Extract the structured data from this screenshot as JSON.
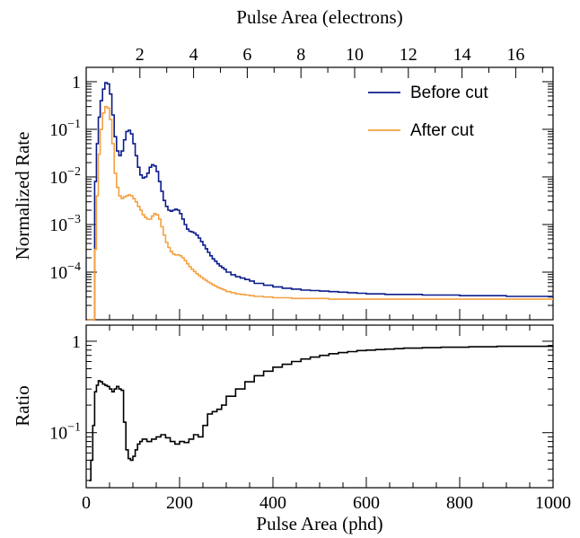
{
  "chart_data": [
    {
      "type": "line",
      "panel": "main",
      "title": "",
      "xlabel": "Pulse Area (phd)",
      "ylabel": "Normalized Rate",
      "secondary_xlabel": "Pulse Area (electrons)",
      "secondary_x_ticks": [
        "2",
        "4",
        "6",
        "8",
        "10",
        "12",
        "14",
        "16"
      ],
      "secondary_x_tick_values": [
        2,
        4,
        6,
        8,
        10,
        12,
        14,
        16
      ],
      "electron_phd": 57.5,
      "xlim": [
        0,
        1000
      ],
      "ylim": [
        1e-05,
        2
      ],
      "yscale": "log",
      "y_ticks": [
        "1",
        "10^-1",
        "10^-2",
        "10^-3",
        "10^-4"
      ],
      "y_tick_values": [
        1,
        0.1,
        0.01,
        0.001,
        0.0001
      ],
      "legend_position": "top-right",
      "series": [
        {
          "name": "Before cut",
          "color": "#0b1c8c",
          "x": [
            10,
            18,
            22,
            26,
            30,
            35,
            40,
            45,
            50,
            55,
            60,
            65,
            70,
            75,
            80,
            85,
            90,
            95,
            100,
            105,
            110,
            115,
            120,
            125,
            130,
            135,
            140,
            145,
            150,
            155,
            160,
            165,
            170,
            175,
            180,
            185,
            190,
            195,
            200,
            205,
            210,
            215,
            220,
            225,
            230,
            235,
            240,
            245,
            250,
            255,
            260,
            265,
            270,
            275,
            280,
            285,
            290,
            295,
            300,
            310,
            320,
            330,
            340,
            350,
            360,
            380,
            400,
            420,
            440,
            460,
            480,
            500,
            520,
            540,
            560,
            580,
            600,
            640,
            680,
            720,
            760,
            800,
            850,
            900,
            950,
            1000
          ],
          "y": [
            8e-06,
            8e-06,
            0.008,
            0.05,
            0.18,
            0.4,
            0.7,
            0.95,
            0.9,
            0.55,
            0.2,
            0.07,
            0.035,
            0.028,
            0.035,
            0.06,
            0.09,
            0.095,
            0.08,
            0.05,
            0.028,
            0.016,
            0.011,
            0.0095,
            0.01,
            0.012,
            0.016,
            0.018,
            0.017,
            0.013,
            0.008,
            0.005,
            0.0032,
            0.0024,
            0.002,
            0.0019,
            0.002,
            0.0021,
            0.002,
            0.0017,
            0.0013,
            0.001,
            0.0008,
            0.00072,
            0.0007,
            0.00066,
            0.0006,
            0.00052,
            0.00044,
            0.00037,
            0.00031,
            0.00026,
            0.00022,
            0.00019,
            0.00017,
            0.00015,
            0.000135,
            0.000125,
            0.000115,
            0.0001,
            8.8e-05,
            8e-05,
            7.5e-05,
            7e-05,
            6.5e-05,
            5.8e-05,
            5.3e-05,
            4.9e-05,
            4.6e-05,
            4.4e-05,
            4.2e-05,
            4.1e-05,
            4e-05,
            3.9e-05,
            3.8e-05,
            3.7e-05,
            3.6e-05,
            3.5e-05,
            3.4e-05,
            3.4e-05,
            3.3e-05,
            3.3e-05,
            3.2e-05,
            3.2e-05,
            3.1e-05,
            3.1e-05
          ]
        },
        {
          "name": "After cut",
          "color": "#f5a142",
          "x": [
            10,
            18,
            22,
            26,
            30,
            35,
            40,
            45,
            50,
            55,
            60,
            65,
            70,
            75,
            80,
            85,
            90,
            95,
            100,
            105,
            110,
            115,
            120,
            125,
            130,
            135,
            140,
            145,
            150,
            155,
            160,
            165,
            170,
            175,
            180,
            185,
            190,
            195,
            200,
            205,
            210,
            215,
            220,
            225,
            230,
            235,
            240,
            245,
            250,
            255,
            260,
            265,
            270,
            275,
            280,
            285,
            290,
            295,
            300,
            310,
            320,
            330,
            340,
            350,
            360,
            380,
            400,
            420,
            440,
            460,
            480,
            500,
            520,
            540,
            560,
            580,
            600,
            640,
            680,
            720,
            760,
            800,
            850,
            900,
            950,
            1000
          ],
          "y": [
            8e-06,
            8e-06,
            0.0003,
            0.004,
            0.03,
            0.1,
            0.22,
            0.3,
            0.28,
            0.16,
            0.05,
            0.012,
            0.006,
            0.004,
            0.0035,
            0.0038,
            0.004,
            0.0042,
            0.004,
            0.0035,
            0.003,
            0.0024,
            0.002,
            0.0016,
            0.0014,
            0.0013,
            0.0013,
            0.0015,
            0.0017,
            0.0016,
            0.0013,
            0.0009,
            0.0006,
            0.00042,
            0.00033,
            0.00027,
            0.00024,
            0.00023,
            0.00023,
            0.00022,
            0.0002,
            0.000175,
            0.00015,
            0.00013,
            0.000115,
            0.000103,
            9.3e-05,
            8.5e-05,
            7.8e-05,
            7.2e-05,
            6.7e-05,
            6.2e-05,
            5.8e-05,
            5.4e-05,
            5.1e-05,
            4.8e-05,
            4.6e-05,
            4.4e-05,
            4.2e-05,
            3.9e-05,
            3.7e-05,
            3.5e-05,
            3.4e-05,
            3.3e-05,
            3.2e-05,
            3.1e-05,
            3e-05,
            2.9e-05,
            2.9e-05,
            2.8e-05,
            2.8e-05,
            2.8e-05,
            2.8e-05,
            2.7e-05,
            2.7e-05,
            2.7e-05,
            2.7e-05,
            2.7e-05,
            2.7e-05,
            2.7e-05,
            2.7e-05,
            2.7e-05,
            2.7e-05,
            2.7e-05,
            2.7e-05,
            2.7e-05
          ]
        }
      ]
    },
    {
      "type": "line",
      "panel": "ratio",
      "title": "",
      "xlabel": "Pulse Area (phd)",
      "ylabel": "Ratio",
      "xlim": [
        0,
        1000
      ],
      "ylim": [
        0.025,
        1.5
      ],
      "yscale": "log",
      "y_ticks": [
        "1",
        "10^-1"
      ],
      "y_tick_values": [
        1,
        0.1
      ],
      "x_ticks": [
        "0",
        "200",
        "400",
        "600",
        "800",
        "1000"
      ],
      "x_tick_values": [
        0,
        200,
        400,
        600,
        800,
        1000
      ],
      "series": [
        {
          "name": "",
          "color": "#000000",
          "x": [
            10,
            14,
            18,
            22,
            26,
            30,
            35,
            40,
            45,
            50,
            55,
            60,
            65,
            70,
            75,
            80,
            85,
            90,
            95,
            100,
            105,
            110,
            115,
            120,
            130,
            140,
            150,
            160,
            170,
            180,
            190,
            200,
            210,
            220,
            230,
            240,
            250,
            260,
            270,
            280,
            290,
            300,
            320,
            340,
            360,
            380,
            400,
            420,
            440,
            460,
            480,
            500,
            520,
            540,
            560,
            580,
            600,
            620,
            640,
            660,
            680,
            700,
            720,
            740,
            760,
            780,
            800,
            820,
            840,
            860,
            880,
            900,
            920,
            940,
            960,
            980,
            1000
          ],
          "y": [
            0.03,
            0.05,
            0.12,
            0.28,
            0.33,
            0.37,
            0.36,
            0.34,
            0.33,
            0.32,
            0.3,
            0.28,
            0.3,
            0.32,
            0.3,
            0.29,
            0.13,
            0.065,
            0.052,
            0.05,
            0.055,
            0.065,
            0.075,
            0.08,
            0.085,
            0.08,
            0.085,
            0.09,
            0.095,
            0.088,
            0.08,
            0.075,
            0.08,
            0.078,
            0.085,
            0.095,
            0.09,
            0.12,
            0.16,
            0.17,
            0.18,
            0.2,
            0.25,
            0.3,
            0.36,
            0.42,
            0.47,
            0.52,
            0.56,
            0.6,
            0.64,
            0.67,
            0.7,
            0.73,
            0.75,
            0.77,
            0.79,
            0.8,
            0.81,
            0.82,
            0.83,
            0.84,
            0.84,
            0.85,
            0.85,
            0.86,
            0.86,
            0.86,
            0.87,
            0.87,
            0.87,
            0.88,
            0.88,
            0.88,
            0.88,
            0.88,
            0.88
          ]
        }
      ]
    }
  ]
}
